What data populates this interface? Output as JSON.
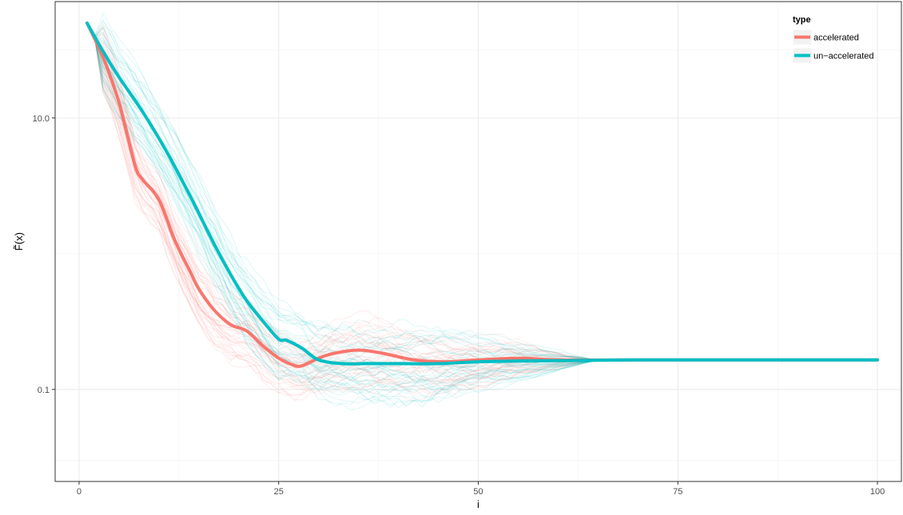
{
  "chart_data": {
    "type": "line",
    "title": "",
    "xlabel": "i",
    "ylabel": "F̃(x)",
    "y_scale": "log10",
    "xlim": [
      -3,
      103
    ],
    "ylim": [
      0.021,
      72
    ],
    "x_ticks": [
      {
        "value": 0,
        "label": "0"
      },
      {
        "value": 25,
        "label": "25"
      },
      {
        "value": 50,
        "label": "50"
      },
      {
        "value": 75,
        "label": "75"
      },
      {
        "value": 100,
        "label": "100"
      }
    ],
    "y_ticks": [
      {
        "value": 10.0,
        "label": "10.0"
      },
      {
        "value": 0.1,
        "label": "0.1"
      }
    ],
    "x_minor_grid": [
      12.5,
      37.5,
      62.5,
      87.5
    ],
    "y_minor_grid": [
      0.03,
      1.0,
      31.6
    ],
    "grid": true,
    "legend": {
      "position": "top-right",
      "title": "type",
      "entries": [
        "accelerated",
        "un−accelerated"
      ]
    },
    "colors": {
      "accelerated": "#f8766d",
      "un-accelerated": "#00bfc4",
      "grid": "#ebebeb",
      "panel_border": "#333333",
      "text": "#000000"
    },
    "series": [
      {
        "name": "accelerated",
        "x": [
          1,
          3,
          5,
          7,
          8,
          10,
          12,
          14,
          15,
          17,
          19,
          21,
          23,
          25,
          27,
          28,
          30,
          32,
          35,
          38,
          42,
          46,
          50,
          55,
          60,
          70,
          80,
          90,
          100
        ],
        "y": [
          50,
          28,
          13,
          4.5,
          3.5,
          2.5,
          1.25,
          0.72,
          0.55,
          0.38,
          0.3,
          0.27,
          0.21,
          0.17,
          0.15,
          0.15,
          0.17,
          0.185,
          0.195,
          0.185,
          0.165,
          0.16,
          0.165,
          0.17,
          0.165,
          0.165,
          0.165,
          0.165,
          0.165
        ]
      },
      {
        "name": "un-accelerated",
        "x": [
          1,
          3,
          5,
          8,
          11,
          14,
          17,
          19,
          21,
          23,
          25,
          26,
          28,
          30,
          33,
          36,
          40,
          45,
          50,
          55,
          60,
          70,
          80,
          90,
          100
        ],
        "y": [
          50,
          31,
          20,
          11,
          5.6,
          2.6,
          1.15,
          0.7,
          0.45,
          0.32,
          0.235,
          0.23,
          0.2,
          0.165,
          0.155,
          0.155,
          0.155,
          0.155,
          0.16,
          0.162,
          0.163,
          0.165,
          0.165,
          0.165,
          0.165
        ]
      }
    ]
  }
}
